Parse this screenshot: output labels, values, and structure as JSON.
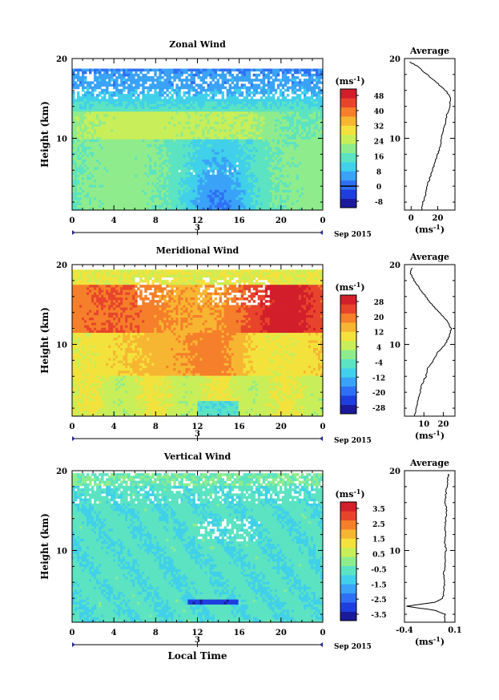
{
  "chart_data": [
    {
      "type": "heatmap",
      "title": "Zonal Wind",
      "ylabel": "Height (km)",
      "xticks": [
        "0",
        "4",
        "8",
        "12",
        "16",
        "20",
        "0"
      ],
      "date_label": "3",
      "date_axis_note": "Sep 2015",
      "xlim": [
        0,
        24
      ],
      "ylim": [
        1,
        20
      ],
      "yticks": [
        "10",
        "20"
      ],
      "colorbar": {
        "unit": "(ms",
        "unit_exp": "-1",
        "unit_close": ")",
        "levels": [
          "48",
          "40",
          "32",
          "24",
          "16",
          "8",
          "0",
          "-8"
        ],
        "colors": [
          "#1a1a9a",
          "#1e3ee0",
          "#2f6ff5",
          "#3aa2f7",
          "#40d0ea",
          "#5ce3c2",
          "#8fec8c",
          "#c8ee59",
          "#f3e23c",
          "#f7b632",
          "#f57f2a",
          "#e8442c",
          "#d21f2b"
        ],
        "zero_line": 0
      },
      "average": {
        "title": "Average",
        "xticks": [
          "0",
          "20"
        ],
        "xlim": [
          -5,
          33
        ],
        "unit": "(ms",
        "unit_exp": "-1",
        "unit_close": ")",
        "profile": [
          [
            1,
            8
          ],
          [
            2,
            9
          ],
          [
            3,
            11
          ],
          [
            4,
            12
          ],
          [
            5,
            14
          ],
          [
            6,
            16
          ],
          [
            7,
            18
          ],
          [
            8,
            20
          ],
          [
            9,
            22
          ],
          [
            10,
            23
          ],
          [
            11,
            24
          ],
          [
            12,
            26
          ],
          [
            13,
            27
          ],
          [
            14,
            29
          ],
          [
            15,
            30
          ],
          [
            16,
            26
          ],
          [
            17,
            19
          ],
          [
            18,
            12
          ],
          [
            19,
            5
          ],
          [
            19.6,
            -1
          ]
        ]
      }
    },
    {
      "type": "heatmap",
      "title": "Meridional Wind",
      "ylabel": "Height (km)",
      "xticks": [
        "0",
        "4",
        "8",
        "12",
        "16",
        "20",
        "0"
      ],
      "date_label": "3",
      "date_axis_note": "Sep 2015",
      "xlim": [
        0,
        24
      ],
      "ylim": [
        1,
        20
      ],
      "yticks": [
        "10",
        "20"
      ],
      "colorbar": {
        "unit": "(ms",
        "unit_exp": "-1",
        "unit_close": ")",
        "levels": [
          "28",
          "20",
          "12",
          "4",
          "-4",
          "-12",
          "-20",
          "-28"
        ],
        "colors": [
          "#1a1a9a",
          "#1e3ee0",
          "#2f6ff5",
          "#3aa2f7",
          "#40d0ea",
          "#5ce3c2",
          "#8fec8c",
          "#c8ee59",
          "#f3e23c",
          "#f7b632",
          "#f57f2a",
          "#e8442c",
          "#d21f2b"
        ],
        "zero_line": 0
      },
      "average": {
        "title": "Average",
        "xticks": [
          "10",
          "20"
        ],
        "xlim": [
          0,
          26
        ],
        "unit": "(ms",
        "unit_exp": "-1",
        "unit_close": ")",
        "profile": [
          [
            1,
            5
          ],
          [
            2,
            6
          ],
          [
            3,
            7
          ],
          [
            4,
            8
          ],
          [
            5,
            9
          ],
          [
            6,
            11
          ],
          [
            7,
            12
          ],
          [
            8,
            15
          ],
          [
            9,
            17
          ],
          [
            10,
            21
          ],
          [
            11,
            23
          ],
          [
            12,
            24
          ],
          [
            13,
            22
          ],
          [
            14,
            18
          ],
          [
            15,
            14
          ],
          [
            16,
            11
          ],
          [
            17,
            8
          ],
          [
            18,
            5
          ],
          [
            19,
            3
          ],
          [
            19.6,
            4
          ]
        ]
      }
    },
    {
      "type": "heatmap",
      "title": "Vertical Wind",
      "ylabel": "Height (km)",
      "xlabel": "Local Time",
      "xticks": [
        "0",
        "4",
        "8",
        "12",
        "16",
        "20",
        "0"
      ],
      "date_label": "3",
      "date_axis_note": "Sep 2015",
      "xlim": [
        0,
        24
      ],
      "ylim": [
        1,
        20
      ],
      "yticks": [
        "10",
        "20"
      ],
      "colorbar": {
        "unit": "(ms",
        "unit_exp": "-1",
        "unit_close": ")",
        "levels": [
          "3.5",
          "2.5",
          "1.5",
          "0.5",
          "-0.5",
          "-1.5",
          "-2.5",
          "-3.5"
        ],
        "colors": [
          "#1a1a9a",
          "#1e3ee0",
          "#2f6ff5",
          "#3aa2f7",
          "#40d0ea",
          "#5ce3c2",
          "#8fec8c",
          "#c8ee59",
          "#f3e23c",
          "#f7b632",
          "#f57f2a",
          "#e8442c",
          "#d21f2b"
        ],
        "zero_line": null
      },
      "average": {
        "title": "Average",
        "xticks": [
          "-0.4",
          "0.1"
        ],
        "xlim": [
          -0.4,
          0.1
        ],
        "unit": "(ms",
        "unit_exp": "-1",
        "unit_close": ")",
        "profile": [
          [
            1,
            0.0
          ],
          [
            2,
            0.0
          ],
          [
            2.5,
            -0.1
          ],
          [
            3,
            -0.38
          ],
          [
            3.5,
            -0.1
          ],
          [
            4,
            -0.02
          ],
          [
            5,
            -0.01
          ],
          [
            6,
            0.0
          ],
          [
            7,
            -0.01
          ],
          [
            8,
            0.0
          ],
          [
            9,
            0.0
          ],
          [
            10,
            0.01
          ],
          [
            11,
            0.0
          ],
          [
            12,
            0.01
          ],
          [
            13,
            0.0
          ],
          [
            14,
            0.01
          ],
          [
            15,
            0.02
          ],
          [
            16,
            0.0
          ],
          [
            17,
            0.01
          ],
          [
            18,
            0.02
          ],
          [
            19,
            0.03
          ],
          [
            19.6,
            0.04
          ]
        ]
      }
    }
  ]
}
